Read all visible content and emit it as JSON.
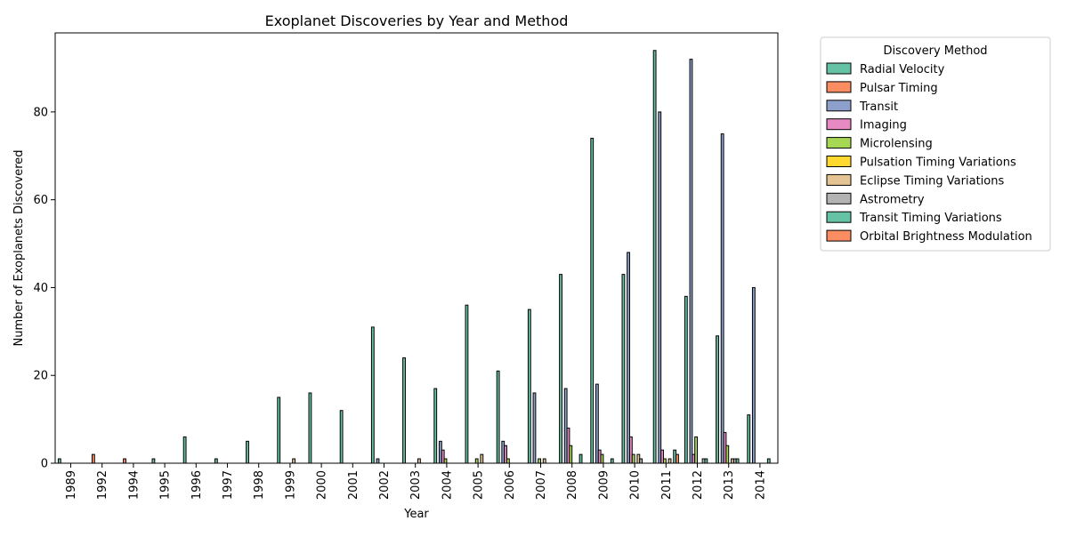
{
  "chart_data": {
    "type": "bar",
    "title": "Exoplanet Discoveries by Year and Method",
    "xlabel": "Year",
    "ylabel": "Number of Exoplanets Discovered",
    "ylim": [
      0,
      98
    ],
    "yticks": [
      0,
      20,
      40,
      60,
      80
    ],
    "grid": false,
    "legend_title": "Discovery Method",
    "legend_position": "outside-top-right",
    "categories": [
      "1989",
      "1992",
      "1994",
      "1995",
      "1996",
      "1997",
      "1998",
      "1999",
      "2000",
      "2001",
      "2002",
      "2003",
      "2004",
      "2005",
      "2006",
      "2007",
      "2008",
      "2009",
      "2010",
      "2011",
      "2012",
      "2013",
      "2014"
    ],
    "series": [
      {
        "name": "Radial Velocity",
        "color": "#66c2a5",
        "values": [
          1,
          0,
          0,
          1,
          6,
          1,
          5,
          15,
          16,
          12,
          31,
          24,
          17,
          36,
          21,
          35,
          43,
          74,
          43,
          94,
          38,
          29,
          11
        ]
      },
      {
        "name": "Pulsar Timing",
        "color": "#fc8d62",
        "values": [
          0,
          2,
          1,
          0,
          0,
          0,
          0,
          0,
          0,
          0,
          0,
          0,
          0,
          0,
          0,
          0,
          0,
          0,
          0,
          0,
          0,
          0,
          0
        ]
      },
      {
        "name": "Transit",
        "color": "#8da0cb",
        "values": [
          0,
          0,
          0,
          0,
          0,
          0,
          0,
          0,
          0,
          0,
          1,
          0,
          5,
          0,
          5,
          16,
          17,
          18,
          48,
          80,
          92,
          75,
          40
        ]
      },
      {
        "name": "Imaging",
        "color": "#e78ac3",
        "values": [
          0,
          0,
          0,
          0,
          0,
          0,
          0,
          0,
          0,
          0,
          0,
          0,
          3,
          0,
          4,
          0,
          8,
          3,
          6,
          3,
          2,
          7,
          0
        ]
      },
      {
        "name": "Microlensing",
        "color": "#a6d854",
        "values": [
          0,
          0,
          0,
          0,
          0,
          0,
          0,
          0,
          0,
          0,
          0,
          0,
          1,
          1,
          1,
          1,
          4,
          2,
          2,
          1,
          6,
          4,
          0
        ]
      },
      {
        "name": "Pulsation Timing Variations",
        "color": "#ffd92f",
        "values": [
          0,
          0,
          0,
          0,
          0,
          0,
          0,
          0,
          0,
          0,
          0,
          0,
          0,
          0,
          0,
          0,
          0,
          0,
          0,
          0,
          0,
          0,
          0
        ]
      },
      {
        "name": "Eclipse Timing Variations",
        "color": "#e5c494",
        "values": [
          0,
          0,
          0,
          0,
          0,
          0,
          0,
          1,
          0,
          0,
          0,
          1,
          0,
          2,
          0,
          1,
          0,
          0,
          2,
          1,
          0,
          1,
          0
        ]
      },
      {
        "name": "Astrometry",
        "color": "#b3b3b3",
        "values": [
          0,
          0,
          0,
          0,
          0,
          0,
          0,
          0,
          0,
          0,
          0,
          0,
          0,
          0,
          0,
          0,
          0,
          0,
          1,
          0,
          1,
          1,
          0
        ]
      },
      {
        "name": "Transit Timing Variations",
        "color": "#66c2a5",
        "values": [
          0,
          0,
          0,
          0,
          0,
          0,
          0,
          0,
          0,
          0,
          0,
          0,
          0,
          0,
          0,
          0,
          2,
          1,
          0,
          3,
          1,
          1,
          1
        ]
      },
      {
        "name": "Orbital Brightness Modulation",
        "color": "#fc8d62",
        "values": [
          0,
          0,
          0,
          0,
          0,
          0,
          0,
          0,
          0,
          0,
          0,
          0,
          0,
          0,
          0,
          0,
          0,
          0,
          0,
          2,
          0,
          0,
          0
        ]
      }
    ]
  }
}
